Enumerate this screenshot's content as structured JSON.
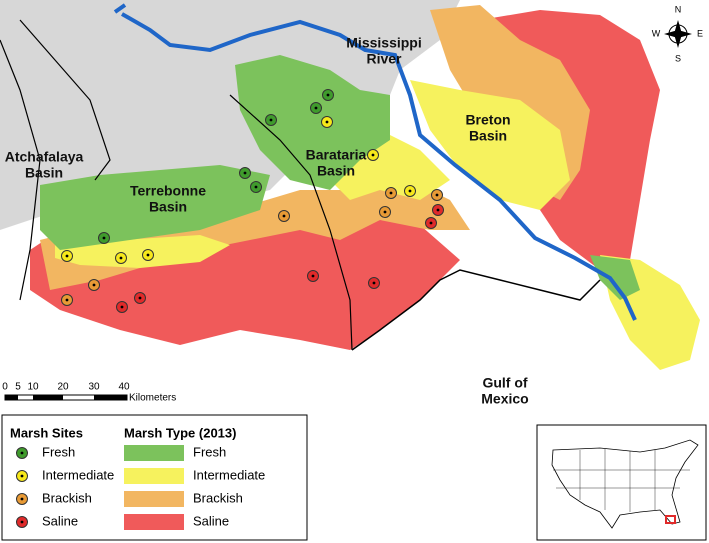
{
  "places": {
    "mississippi": [
      "Mississippi",
      "River"
    ],
    "breton": [
      "Breton",
      "Basin"
    ],
    "barataria": [
      "Barataria",
      "Basin"
    ],
    "atchafalaya": [
      "Atchafalaya",
      "Basin"
    ],
    "terrebonne": [
      "Terrebonne",
      "Basin"
    ],
    "gulf": [
      "Gulf of",
      "Mexico"
    ]
  },
  "compass": {
    "n": "N",
    "s": "S",
    "e": "E",
    "w": "W"
  },
  "scale_bar": {
    "ticks": [
      "0",
      "5",
      "10",
      "20",
      "30",
      "40"
    ],
    "unit": "Kilometers"
  },
  "marsh_sites": {
    "title": "Marsh Sites",
    "items": [
      {
        "label": "Fresh",
        "color": "#3f9b2c"
      },
      {
        "label": "Intermediate",
        "color": "#f7e81a"
      },
      {
        "label": "Brackish",
        "color": "#e89a35"
      },
      {
        "label": "Saline",
        "color": "#e02a2a"
      }
    ]
  },
  "marsh_type": {
    "title": "Marsh Type (2013)",
    "items": [
      {
        "label": "Fresh",
        "color": "#7cc25c"
      },
      {
        "label": "Intermediate",
        "color": "#f6f25e"
      },
      {
        "label": "Brackish",
        "color": "#f2b661"
      },
      {
        "label": "Saline",
        "color": "#f05a5a"
      }
    ]
  }
}
